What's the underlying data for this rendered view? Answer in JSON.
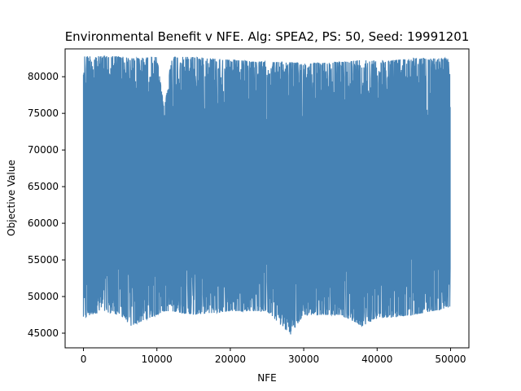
{
  "chart_data": {
    "type": "line",
    "title": "Environmental Benefit v NFE. Alg: SPEA2, PS: 50, Seed: 19991201",
    "xlabel": "NFE",
    "ylabel": "Objective Value",
    "xlim": [
      -2500,
      52500
    ],
    "ylim": [
      43000,
      83800
    ],
    "xticks": [
      0,
      10000,
      20000,
      30000,
      40000,
      50000
    ],
    "yticks": [
      45000,
      50000,
      55000,
      60000,
      65000,
      70000,
      75000,
      80000
    ],
    "grid": false,
    "legend": "none",
    "series": [
      {
        "color": "#4682b4",
        "x_start": 0,
        "x_end": 50000,
        "envelope_points": [
          {
            "x": 0,
            "upper": 82800,
            "lower": 47000
          },
          {
            "x": 1000,
            "upper": 82800,
            "lower": 47500
          },
          {
            "x": 2500,
            "upper": 82800,
            "lower": 48000
          },
          {
            "x": 5000,
            "upper": 82800,
            "lower": 47500
          },
          {
            "x": 6500,
            "upper": 82500,
            "lower": 46000
          },
          {
            "x": 10000,
            "upper": 82700,
            "lower": 47500
          },
          {
            "x": 11000,
            "upper": 75500,
            "lower": 48000
          },
          {
            "x": 12000,
            "upper": 82700,
            "lower": 48000
          },
          {
            "x": 15000,
            "upper": 82700,
            "lower": 47500
          },
          {
            "x": 20000,
            "upper": 82300,
            "lower": 48000
          },
          {
            "x": 25000,
            "upper": 82000,
            "lower": 48000
          },
          {
            "x": 28200,
            "upper": 82000,
            "lower": 44800
          },
          {
            "x": 30000,
            "upper": 81800,
            "lower": 47500
          },
          {
            "x": 35000,
            "upper": 82000,
            "lower": 47500
          },
          {
            "x": 38000,
            "upper": 82300,
            "lower": 46000
          },
          {
            "x": 40000,
            "upper": 82100,
            "lower": 47000
          },
          {
            "x": 45000,
            "upper": 82500,
            "lower": 47500
          },
          {
            "x": 50000,
            "upper": 82500,
            "lower": 48500
          }
        ]
      }
    ]
  }
}
